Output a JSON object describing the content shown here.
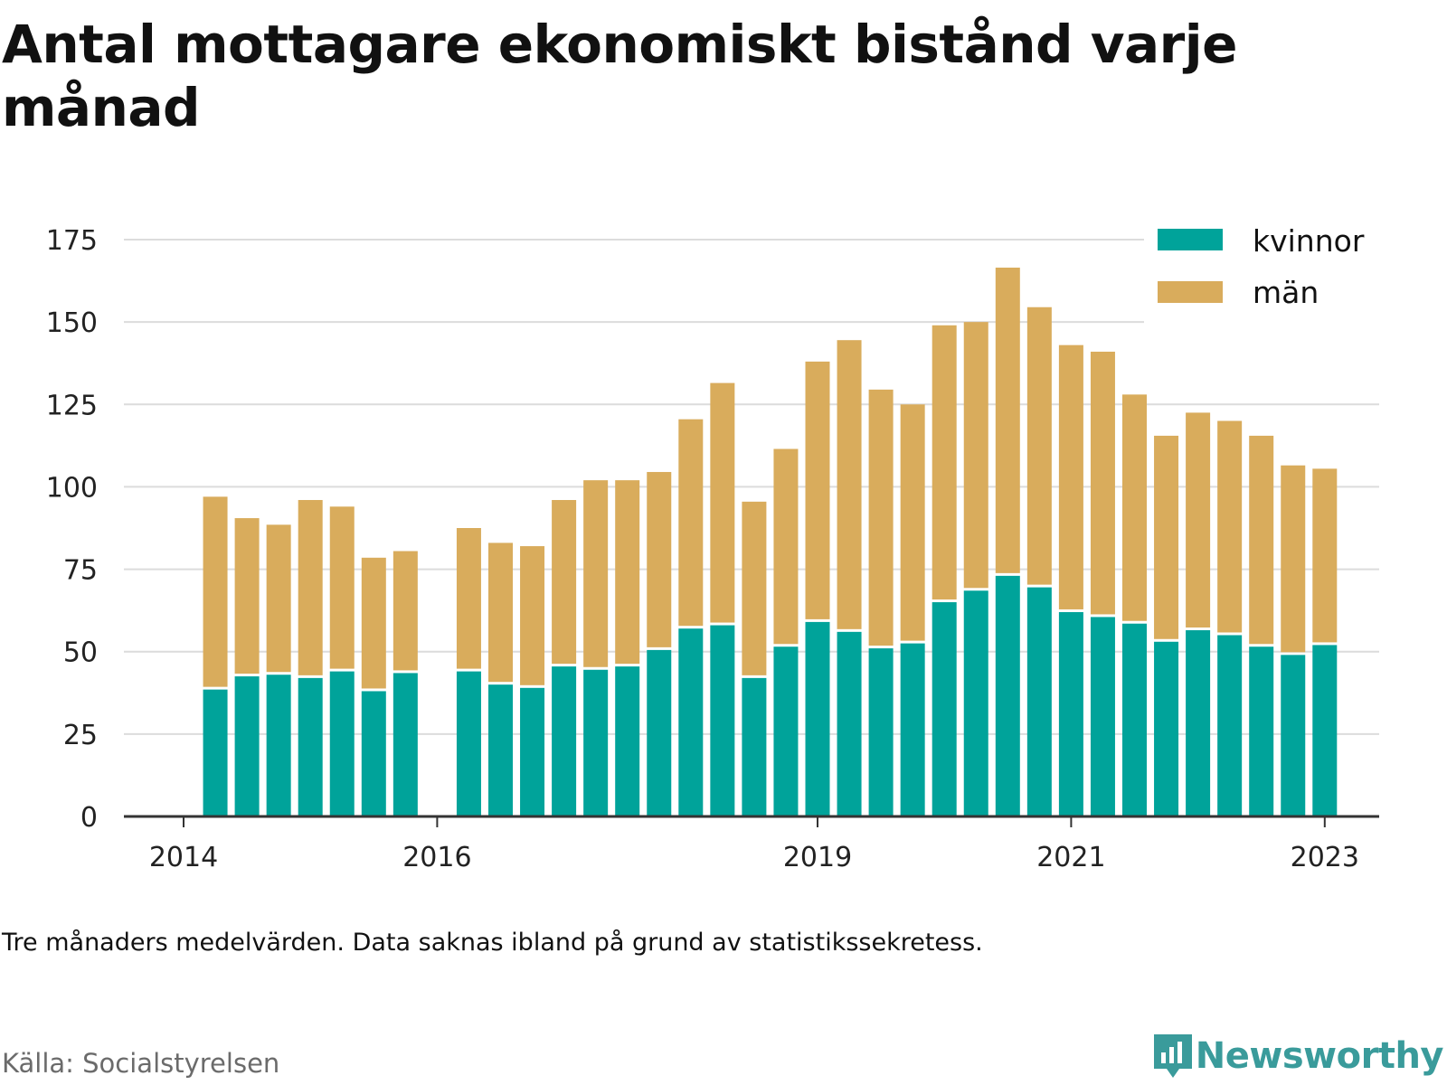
{
  "title": "Antal mottagare ekonomiskt bistånd varje månad",
  "note": "Tre månaders medelvärden. Data saknas ibland på grund av statistikssekretess.",
  "source": "Källa: Socialstyrelsen",
  "brand": "Newsworthy",
  "colors": {
    "kvinnor": "#00a39a",
    "man": "#d9ac5c",
    "grid": "#dcdcdc",
    "axis": "#333333",
    "brand": "#3a9b9b"
  },
  "chart_data": {
    "type": "bar",
    "stacked": true,
    "y_ticks": [
      "0",
      "25",
      "50",
      "75",
      "100",
      "125",
      "150",
      "175"
    ],
    "ylim": [
      0,
      180
    ],
    "x_ticks": [
      {
        "label": "2014",
        "year": 2014.0
      },
      {
        "label": "2016",
        "year": 2016.0
      },
      {
        "label": "2019",
        "year": 2019.0
      },
      {
        "label": "2021",
        "year": 2021.0
      },
      {
        "label": "2023",
        "year": 2023.0
      }
    ],
    "legend": {
      "position": "top-right",
      "entries": [
        "kvinnor",
        "män"
      ]
    },
    "series": [
      {
        "name": "kvinnor",
        "values": [
          38.5,
          42.5,
          43,
          42,
          44,
          38,
          43.5,
          null,
          44,
          40,
          39,
          45.5,
          44.5,
          45.5,
          50.5,
          57,
          58,
          42,
          51.5,
          59,
          56,
          51,
          52.5,
          65,
          68.5,
          73,
          69.5,
          62,
          60.5,
          58.5,
          53,
          56.5,
          55,
          51.5,
          49,
          52
        ]
      },
      {
        "name": "män",
        "values": [
          58.5,
          48,
          45.5,
          54,
          50,
          40.5,
          37,
          null,
          43.5,
          43,
          43,
          50.5,
          57.5,
          56.5,
          54,
          63.5,
          73.5,
          53.5,
          60,
          79,
          88.5,
          78.5,
          72.5,
          84,
          81.5,
          93.5,
          85,
          81,
          80.5,
          69.5,
          62.5,
          66,
          65,
          64,
          57.5,
          53.5
        ]
      }
    ],
    "periods": [
      "2014-Q2",
      "2014-Q3",
      "2014-Q4",
      "2015-Q1",
      "2015-Q2",
      "2015-Q3",
      "2015-Q4",
      "2016-Q1",
      "2016-Q2",
      "2016-Q3",
      "2016-Q4",
      "2017-Q1",
      "2017-Q2",
      "2017-Q3",
      "2017-Q4",
      "2018-Q1",
      "2018-Q2",
      "2018-Q3",
      "2018-Q4",
      "2019-Q1",
      "2019-Q2",
      "2019-Q3",
      "2019-Q4",
      "2020-Q1",
      "2020-Q2",
      "2020-Q3",
      "2020-Q4",
      "2021-Q1",
      "2021-Q2",
      "2021-Q3",
      "2021-Q4",
      "2022-Q1",
      "2022-Q2",
      "2022-Q3",
      "2022-Q4",
      "2023-Q1"
    ]
  }
}
